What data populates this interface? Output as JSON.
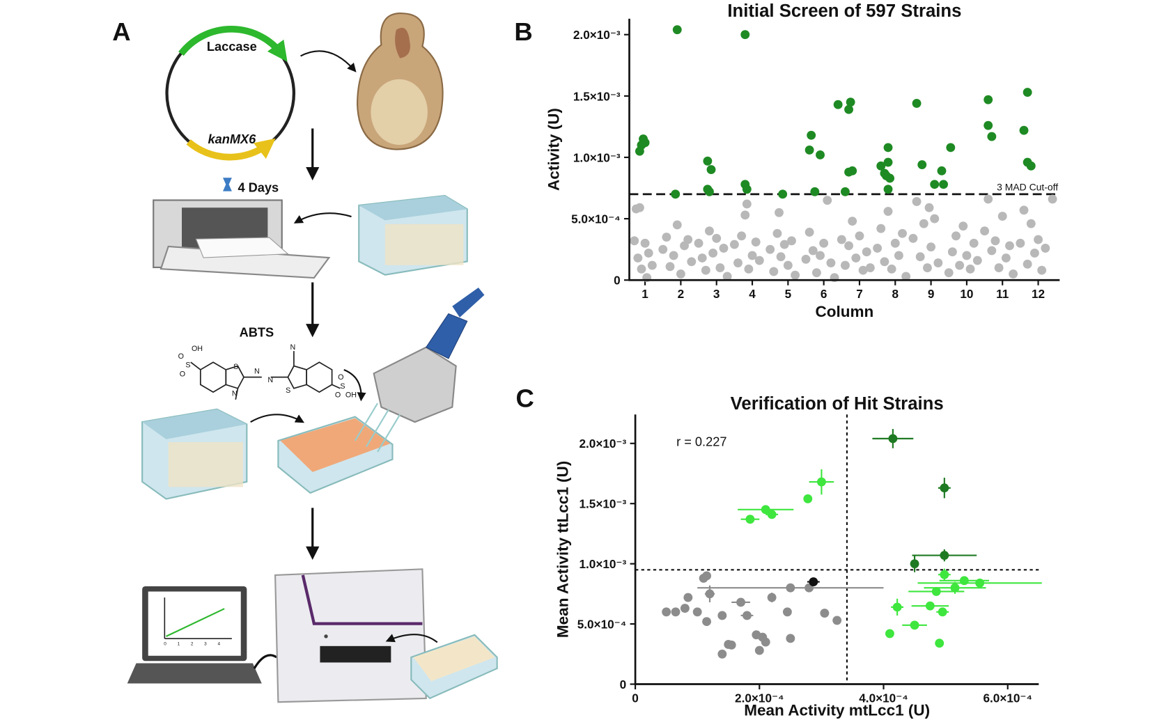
{
  "panel_labels": [
    "A",
    "B",
    "C"
  ],
  "panel_a": {
    "plasmid_genes": [
      "Laccase",
      "kanMX6"
    ],
    "incubation": "4 Days",
    "substrate": "ABTS",
    "atoms": [
      "OH",
      "O",
      "S",
      "O",
      "S",
      "N",
      "N",
      "N",
      "S",
      "N",
      "O",
      "S",
      "O",
      "OH"
    ],
    "laptop_ticks": [
      "0",
      "1",
      "2",
      "3",
      "4"
    ]
  },
  "chart_data": [
    {
      "type": "scatter",
      "title": "Initial Screen of 597 Strains",
      "x_label": "Column",
      "y_label": "Activity (U)",
      "xlim": [
        0.56,
        12.6
      ],
      "xticks": [
        1,
        2,
        3,
        4,
        5,
        6,
        7,
        8,
        9,
        10,
        11,
        12
      ],
      "ylim": [
        0,
        0.00213
      ],
      "yticks": [
        0,
        {
          "value": 0.0005,
          "label": "5.0×10⁻⁴"
        },
        {
          "value": 0.001,
          "label": "1.0×10⁻³"
        },
        {
          "value": 0.0015,
          "label": "1.5×10⁻³"
        },
        {
          "value": 0.002,
          "label": "2.0×10⁻³"
        }
      ],
      "cutoff": {
        "value": 0.0007,
        "label": "3 MAD Cut-off"
      },
      "series": [
        {
          "color": "#b8b8b8",
          "x": [
            0.7,
            0.75,
            0.8,
            0.9,
            1.0,
            1.05,
            1.1,
            1.2,
            0.85,
            1.5,
            1.6,
            1.7,
            1.8,
            1.9,
            2.0,
            2.1,
            2.2,
            2.3,
            2.5,
            2.6,
            2.7,
            2.8,
            2.9,
            3.0,
            3.1,
            3.2,
            3.3,
            3.5,
            3.6,
            3.7,
            3.8,
            3.9,
            4.0,
            4.1,
            4.2,
            3.85,
            4.5,
            4.6,
            4.7,
            4.75,
            4.8,
            4.9,
            5.0,
            5.1,
            5.2,
            5.5,
            5.6,
            5.7,
            5.8,
            5.9,
            6.0,
            6.1,
            6.2,
            6.3,
            6.5,
            6.6,
            6.7,
            6.8,
            6.9,
            7.0,
            7.1,
            7.2,
            7.3,
            7.5,
            7.6,
            7.7,
            7.8,
            7.9,
            8.0,
            8.1,
            8.2,
            8.3,
            8.5,
            8.6,
            8.7,
            8.8,
            8.9,
            9.0,
            9.1,
            9.2,
            8.95,
            9.5,
            9.6,
            9.7,
            9.8,
            9.9,
            10.0,
            10.1,
            10.2,
            10.3,
            10.5,
            10.6,
            10.7,
            10.8,
            10.9,
            11.0,
            11.1,
            11.2,
            11.3,
            11.5,
            11.6,
            11.7,
            11.8,
            11.9,
            12.0,
            12.1,
            12.2,
            12.4
          ],
          "values": [
            0.00032,
            0.00058,
            0.00018,
            9e-05,
            0.0003,
            2e-05,
            0.00022,
            0.00012,
            0.00059,
            0.00025,
            0.00035,
            0.00011,
            0.0002,
            0.00045,
            5e-05,
            0.00028,
            0.00033,
            0.00015,
            0.0003,
            0.00018,
            8e-05,
            0.0004,
            0.00022,
            0.00034,
            0.0001,
            0.00026,
            3e-05,
            0.00029,
            0.00014,
            0.00036,
            0.00053,
            9e-05,
            0.0002,
            0.00031,
            0.00016,
            0.00062,
            0.00025,
            7e-05,
            0.00038,
            0.00055,
            0.00019,
            0.00029,
            0.00012,
            0.00032,
            4e-05,
            0.00017,
            0.00039,
            0.00024,
            6e-05,
            0.0002,
            0.0003,
            0.00065,
            0.00014,
            2e-05,
            0.00033,
            0.00012,
            0.00028,
            0.00048,
            0.00018,
            0.00036,
            8e-05,
            0.00023,
            0.0001,
            0.00026,
            0.00042,
            0.00015,
            0.00056,
            9e-05,
            0.0003,
            0.0002,
            0.00038,
            3e-05,
            0.00034,
            0.00064,
            0.00019,
            0.00046,
            0.0001,
            0.00027,
            0.0005,
            0.00014,
            0.00059,
            6e-05,
            0.00023,
            0.00036,
            0.00012,
            0.00044,
            0.0002,
            9e-05,
            0.0003,
            0.00016,
            0.0004,
            0.00066,
            0.00024,
            0.00032,
            0.0001,
            0.00052,
            0.00018,
            0.00028,
            5e-05,
            0.0003,
            0.00057,
            0.00013,
            0.00046,
            0.00022,
            0.00033,
            8e-05,
            0.00026,
            0.00066
          ]
        },
        {
          "color": "#1e8a23",
          "x": [
            0.85,
            0.9,
            0.95,
            1.0,
            1.85,
            1.9,
            2.75,
            2.85,
            2.75,
            2.8,
            3.8,
            3.8,
            3.85,
            4.85,
            5.6,
            5.65,
            5.75,
            5.9,
            6.4,
            6.6,
            6.7,
            6.75,
            6.7,
            6.8,
            7.6,
            7.7,
            7.75,
            7.8,
            7.8,
            7.85,
            7.8,
            8.6,
            8.75,
            9.1,
            9.3,
            9.35,
            9.55,
            10.6,
            10.6,
            10.7,
            11.6,
            11.7,
            11.7,
            11.8
          ],
          "values": [
            0.00105,
            0.0011,
            0.00115,
            0.00112,
            0.0007,
            0.00204,
            0.00097,
            0.0009,
            0.00074,
            0.00072,
            0.002,
            0.00078,
            0.00074,
            0.0007,
            0.00106,
            0.00118,
            0.00072,
            0.00102,
            0.00143,
            0.00072,
            0.00139,
            0.00145,
            0.00088,
            0.00089,
            0.00093,
            0.00087,
            0.00085,
            0.00096,
            0.00108,
            0.00083,
            0.00074,
            0.00144,
            0.00094,
            0.00078,
            0.00089,
            0.00078,
            0.00108,
            0.00147,
            0.00126,
            0.00117,
            0.00122,
            0.00153,
            0.00096,
            0.00093
          ]
        }
      ]
    },
    {
      "type": "scatter",
      "title": "Verification of Hit Strains",
      "x_label": "Mean Activity mtLcc1 (U)",
      "y_label": "Mean Activity ttLcc1 (U)",
      "annotation": "r = 0.227",
      "xlim": [
        0,
        0.00065
      ],
      "xticks": [
        0,
        {
          "value": 0.0002,
          "label": "2.0×10⁻⁴"
        },
        {
          "value": 0.0004,
          "label": "4.0×10⁻⁴"
        },
        {
          "value": 0.0006,
          "label": "6.0×10⁻⁴"
        }
      ],
      "ylim": [
        0,
        0.00224
      ],
      "yticks": [
        0,
        {
          "value": 0.0005,
          "label": "5.0×10⁻⁴"
        },
        {
          "value": 0.001,
          "label": "1.0×10⁻³"
        },
        {
          "value": 0.0015,
          "label": "1.5×10⁻³"
        },
        {
          "value": 0.002,
          "label": "2.0×10⁻³"
        }
      ],
      "reference_lines": {
        "x": 0.000341,
        "y": 0.00095
      },
      "series": [
        {
          "color": "#8c8c8c",
          "x": [
            5e-05,
            6.5e-05,
            8e-05,
            8.5e-05,
            0.0001,
            0.00011,
            0.000115,
            0.00012,
            0.000115,
            0.00014,
            0.00014,
            0.00015,
            0.000155,
            0.00017,
            0.00018,
            0.000195,
            0.0002,
            0.000205,
            0.00021,
            0.00022,
            0.000245,
            0.00025,
            0.00025,
            0.00028,
            0.000305,
            0.000325
          ],
          "values": [
            0.0006,
            0.0006,
            0.00063,
            0.00072,
            0.0006,
            0.00088,
            0.0009,
            0.00075,
            0.00052,
            0.00057,
            0.00025,
            0.00033,
            0.000325,
            0.00068,
            0.00057,
            0.00041,
            0.00028,
            0.00039,
            0.00035,
            0.00072,
            0.0006,
            0.00038,
            0.0008,
            0.0008,
            0.00059,
            0.00053
          ],
          "xerr": [
            0,
            5e-06,
            5e-06,
            0,
            5e-06,
            5e-06,
            0,
            8e-06,
            0,
            0,
            0,
            5e-06,
            0,
            1.5e-05,
            1e-05,
            0,
            0,
            5e-06,
            5e-06,
            0,
            5e-06,
            0,
            0.00015,
            0,
            5e-06,
            0
          ],
          "yerr": [
            0,
            3e-05,
            3e-05,
            0,
            3e-05,
            3e-05,
            0,
            7e-05,
            0,
            0,
            0,
            0,
            0,
            0,
            0,
            0,
            0,
            0,
            0,
            4e-05,
            2e-05,
            0,
            0,
            0,
            3e-05,
            3e-05
          ]
        },
        {
          "color": "#111111",
          "x": [
            0.000287
          ],
          "values": [
            0.00085
          ],
          "xerr": [
            1e-05
          ],
          "yerr": [
            2.5e-05
          ]
        },
        {
          "color": "#3ee63e",
          "x": [
            0.0003,
            0.000278,
            0.00021,
            0.00022,
            0.000185,
            0.000498,
            0.000555,
            0.00053,
            0.000515,
            0.000485,
            0.000422,
            0.000475,
            0.000495,
            0.00045,
            0.00041,
            0.00049
          ],
          "values": [
            0.00168,
            0.00154,
            0.00145,
            0.00141,
            0.00137,
            0.00091,
            0.00084,
            0.00086,
            0.0008,
            0.00077,
            0.00064,
            0.00065,
            0.0006,
            0.00049,
            0.00042,
            0.00034
          ],
          "xerr": [
            2e-05,
            0,
            4.5e-05,
            1e-05,
            1.5e-05,
            1e-05,
            0.0001,
            4e-05,
            5e-05,
            4.5e-05,
            1e-05,
            3e-05,
            1e-05,
            2e-05,
            0,
            5e-06
          ],
          "yerr": [
            0.000105,
            0,
            2e-05,
            0,
            0,
            5e-05,
            3.5e-05,
            0,
            5e-05,
            3e-05,
            7e-05,
            0,
            3e-05,
            0,
            0,
            0
          ]
        },
        {
          "color": "#1e7a22",
          "x": [
            0.000415,
            0.000498,
            0.00045,
            0.000498
          ],
          "values": [
            0.00204,
            0.00163,
            0.001,
            0.00107
          ],
          "xerr": [
            3.3e-05,
            1e-05,
            5e-06,
            5.2e-05
          ],
          "yerr": [
            8e-05,
            8.5e-05,
            7e-05,
            5e-05
          ]
        }
      ]
    }
  ]
}
